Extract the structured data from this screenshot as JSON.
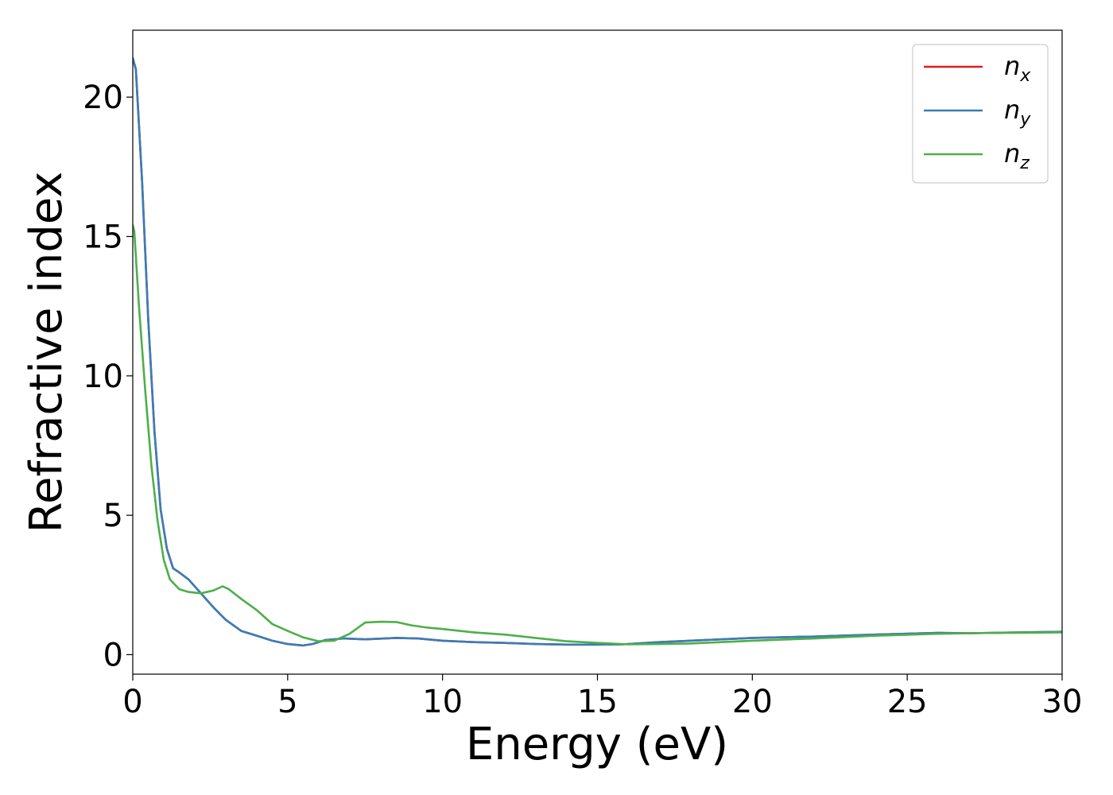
{
  "chart_data": {
    "type": "line",
    "xlabel": "Energy (eV)",
    "ylabel": "Refractive index",
    "xlim": [
      0,
      30
    ],
    "ylim": [
      -0.7,
      22.4
    ],
    "xticks": [
      0,
      5,
      10,
      15,
      20,
      25,
      30
    ],
    "yticks": [
      0,
      5,
      10,
      15,
      20
    ],
    "grid": false,
    "legend": {
      "position": "top-right"
    },
    "series": [
      {
        "name": "n",
        "subscript": "x",
        "color": "#e41a1c",
        "x": [
          0,
          0.1,
          0.3,
          0.5,
          0.7,
          0.9,
          1.1,
          1.3,
          1.5,
          1.8,
          2.2,
          2.6,
          3.0,
          3.5,
          4.0,
          4.5,
          5.0,
          5.5,
          5.8,
          6.2,
          6.8,
          7.5,
          8.5,
          9.2,
          10,
          11,
          12,
          13,
          14,
          15,
          15.8,
          17,
          18,
          19,
          20,
          22,
          24,
          26,
          27,
          30
        ],
        "y": [
          21.4,
          21.0,
          17.0,
          12.0,
          8.0,
          5.2,
          3.8,
          3.1,
          2.95,
          2.7,
          2.2,
          1.7,
          1.25,
          0.85,
          0.68,
          0.5,
          0.38,
          0.33,
          0.38,
          0.52,
          0.58,
          0.55,
          0.6,
          0.58,
          0.5,
          0.45,
          0.42,
          0.38,
          0.36,
          0.36,
          0.37,
          0.45,
          0.5,
          0.55,
          0.6,
          0.65,
          0.72,
          0.78,
          0.77,
          0.82
        ]
      },
      {
        "name": "n",
        "subscript": "y",
        "color": "#377eb8",
        "x": [
          0,
          0.1,
          0.3,
          0.5,
          0.7,
          0.9,
          1.1,
          1.3,
          1.5,
          1.8,
          2.2,
          2.6,
          3.0,
          3.5,
          4.0,
          4.5,
          5.0,
          5.5,
          5.8,
          6.2,
          6.8,
          7.5,
          8.5,
          9.2,
          10,
          11,
          12,
          13,
          14,
          15,
          15.8,
          17,
          18,
          19,
          20,
          22,
          24,
          26,
          27,
          30
        ],
        "y": [
          21.4,
          21.0,
          17.0,
          12.0,
          8.0,
          5.2,
          3.8,
          3.1,
          2.95,
          2.7,
          2.2,
          1.7,
          1.25,
          0.85,
          0.68,
          0.5,
          0.38,
          0.33,
          0.38,
          0.52,
          0.58,
          0.55,
          0.6,
          0.58,
          0.5,
          0.45,
          0.42,
          0.38,
          0.36,
          0.36,
          0.37,
          0.45,
          0.5,
          0.55,
          0.6,
          0.65,
          0.72,
          0.78,
          0.77,
          0.82
        ]
      },
      {
        "name": "n",
        "subscript": "z",
        "color": "#4daf4a",
        "x": [
          0,
          0.05,
          0.2,
          0.4,
          0.6,
          0.8,
          1.0,
          1.2,
          1.5,
          1.8,
          2.2,
          2.6,
          2.9,
          3.1,
          3.5,
          4.0,
          4.5,
          5.0,
          5.5,
          6.0,
          6.5,
          7.0,
          7.5,
          8.0,
          8.5,
          9.0,
          9.5,
          10,
          11,
          12,
          13,
          14,
          15,
          16,
          17,
          18,
          19,
          20,
          22,
          24,
          26,
          27,
          30
        ],
        "y": [
          15.4,
          15.2,
          12.5,
          9.5,
          6.8,
          4.8,
          3.4,
          2.7,
          2.35,
          2.25,
          2.2,
          2.3,
          2.45,
          2.35,
          2.0,
          1.6,
          1.1,
          0.85,
          0.62,
          0.48,
          0.5,
          0.75,
          1.15,
          1.18,
          1.17,
          1.05,
          0.97,
          0.92,
          0.8,
          0.72,
          0.6,
          0.48,
          0.42,
          0.37,
          0.38,
          0.4,
          0.45,
          0.5,
          0.58,
          0.68,
          0.75,
          0.77,
          0.8
        ]
      }
    ]
  }
}
